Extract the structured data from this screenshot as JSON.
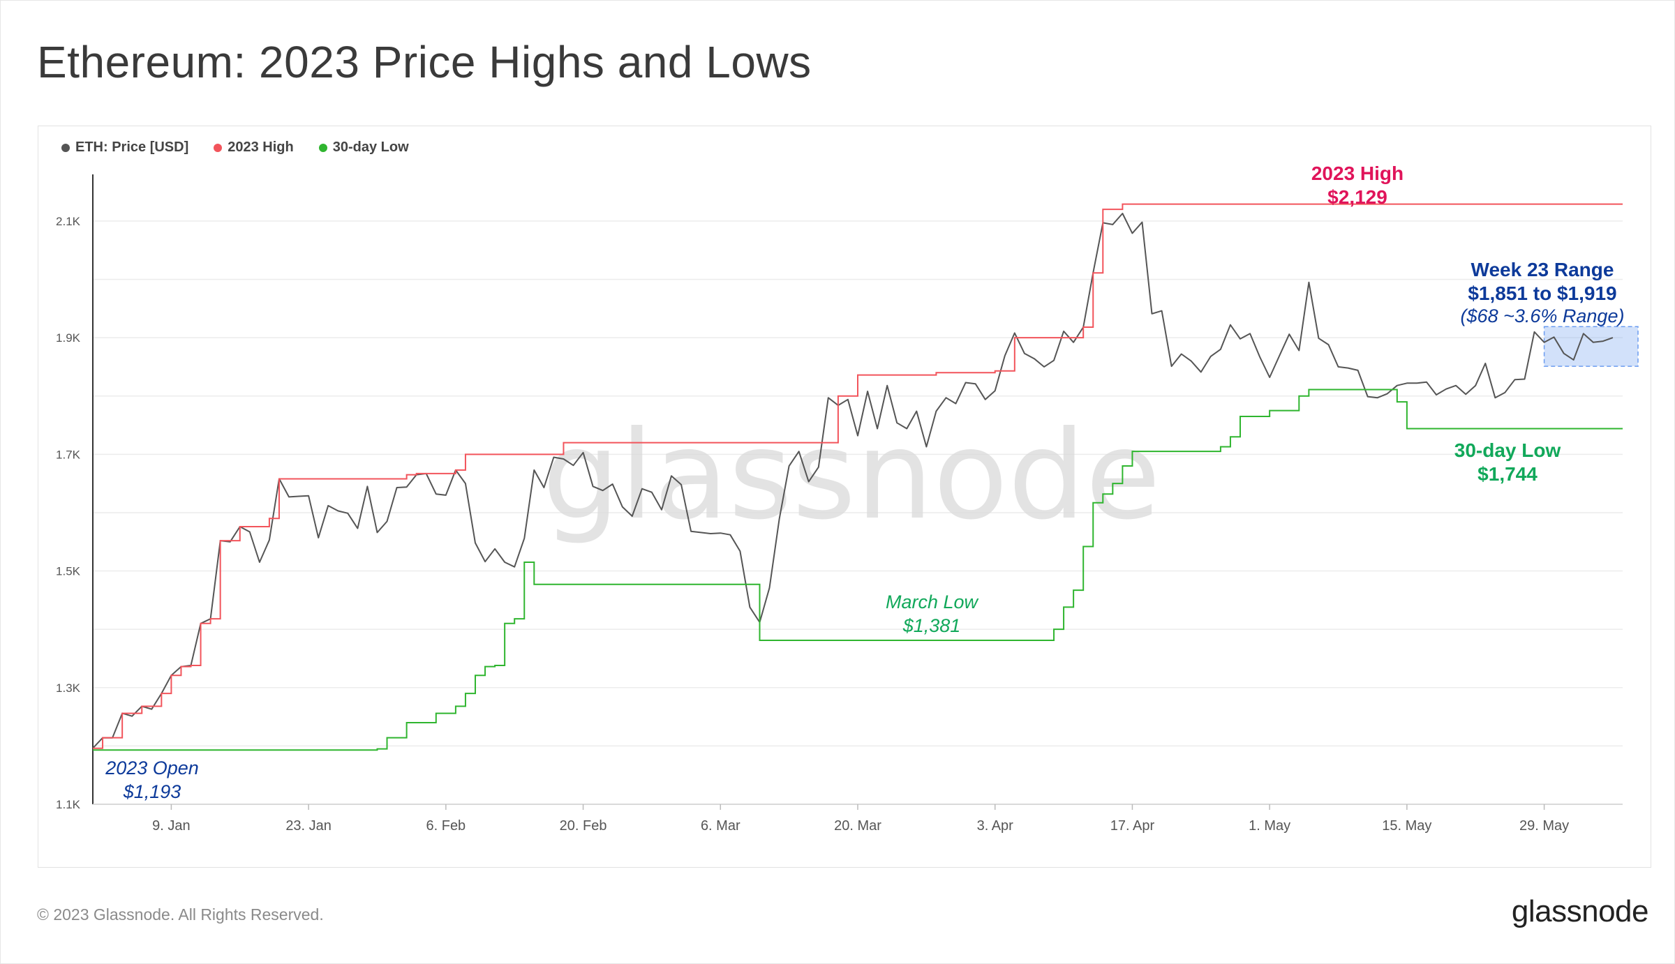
{
  "title": "Ethereum: 2023 Price Highs and Lows",
  "footer": {
    "copyright": "© 2023 Glassnode. All Rights Reserved.",
    "logo": "glassnode"
  },
  "watermark": "glassnode",
  "legend": [
    {
      "label": "ETH: Price [USD]",
      "color": "#555555"
    },
    {
      "label": "2023 High",
      "color": "#f2545b"
    },
    {
      "label": "30-day Low",
      "color": "#2fb52f"
    }
  ],
  "chart_data": {
    "type": "line",
    "x_axis": {
      "type": "date",
      "range": [
        "2023-01-01",
        "2023-06-06"
      ],
      "ticks": [
        {
          "date": "2023-01-09",
          "label": "9. Jan"
        },
        {
          "date": "2023-01-23",
          "label": "23. Jan"
        },
        {
          "date": "2023-02-06",
          "label": "6. Feb"
        },
        {
          "date": "2023-02-20",
          "label": "20. Feb"
        },
        {
          "date": "2023-03-06",
          "label": "6. Mar"
        },
        {
          "date": "2023-03-20",
          "label": "20. Mar"
        },
        {
          "date": "2023-04-03",
          "label": "3. Apr"
        },
        {
          "date": "2023-04-17",
          "label": "17. Apr"
        },
        {
          "date": "2023-05-01",
          "label": "1. May"
        },
        {
          "date": "2023-05-15",
          "label": "15. May"
        },
        {
          "date": "2023-05-29",
          "label": "29. May"
        }
      ]
    },
    "y_axis": {
      "range": [
        1100,
        2180
      ],
      "ticks": [
        {
          "value": 1100,
          "label": "1.1K"
        },
        {
          "value": 1300,
          "label": "1.3K"
        },
        {
          "value": 1500,
          "label": "1.5K"
        },
        {
          "value": 1700,
          "label": "1.7K"
        },
        {
          "value": 1900,
          "label": "1.9K"
        },
        {
          "value": 2100,
          "label": "2.1K"
        }
      ],
      "gridlines": [
        1100,
        1200,
        1300,
        1400,
        1500,
        1600,
        1700,
        1800,
        1900,
        2000,
        2100
      ],
      "grid": true
    },
    "series": [
      {
        "name": "ETH: Price [USD]",
        "color": "#555555",
        "points": [
          [
            "2023-01-01",
            1196
          ],
          [
            "2023-01-02",
            1214
          ],
          [
            "2023-01-03",
            1214
          ],
          [
            "2023-01-04",
            1256
          ],
          [
            "2023-01-05",
            1251
          ],
          [
            "2023-01-06",
            1268
          ],
          [
            "2023-01-07",
            1263
          ],
          [
            "2023-01-08",
            1290
          ],
          [
            "2023-01-09",
            1321
          ],
          [
            "2023-01-10",
            1336
          ],
          [
            "2023-01-11",
            1338
          ],
          [
            "2023-01-12",
            1410
          ],
          [
            "2023-01-13",
            1418
          ],
          [
            "2023-01-14",
            1552
          ],
          [
            "2023-01-15",
            1550
          ],
          [
            "2023-01-16",
            1576
          ],
          [
            "2023-01-17",
            1567
          ],
          [
            "2023-01-18",
            1515
          ],
          [
            "2023-01-19",
            1553
          ],
          [
            "2023-01-20",
            1658
          ],
          [
            "2023-01-21",
            1627
          ],
          [
            "2023-01-22",
            1628
          ],
          [
            "2023-01-23",
            1629
          ],
          [
            "2023-01-24",
            1557
          ],
          [
            "2023-01-25",
            1612
          ],
          [
            "2023-01-26",
            1603
          ],
          [
            "2023-01-27",
            1599
          ],
          [
            "2023-01-28",
            1573
          ],
          [
            "2023-01-29",
            1645
          ],
          [
            "2023-01-30",
            1566
          ],
          [
            "2023-01-31",
            1585
          ],
          [
            "2023-02-01",
            1643
          ],
          [
            "2023-02-02",
            1644
          ],
          [
            "2023-02-03",
            1665
          ],
          [
            "2023-02-04",
            1667
          ],
          [
            "2023-02-05",
            1632
          ],
          [
            "2023-02-06",
            1630
          ],
          [
            "2023-02-07",
            1673
          ],
          [
            "2023-02-08",
            1650
          ],
          [
            "2023-02-09",
            1548
          ],
          [
            "2023-02-10",
            1516
          ],
          [
            "2023-02-11",
            1538
          ],
          [
            "2023-02-12",
            1515
          ],
          [
            "2023-02-13",
            1507
          ],
          [
            "2023-02-14",
            1556
          ],
          [
            "2023-02-15",
            1673
          ],
          [
            "2023-02-16",
            1643
          ],
          [
            "2023-02-17",
            1695
          ],
          [
            "2023-02-18",
            1692
          ],
          [
            "2023-02-19",
            1681
          ],
          [
            "2023-02-20",
            1703
          ],
          [
            "2023-02-21",
            1645
          ],
          [
            "2023-02-22",
            1638
          ],
          [
            "2023-02-23",
            1649
          ],
          [
            "2023-02-24",
            1610
          ],
          [
            "2023-02-25",
            1594
          ],
          [
            "2023-02-26",
            1641
          ],
          [
            "2023-02-27",
            1635
          ],
          [
            "2023-02-28",
            1605
          ],
          [
            "2023-03-01",
            1663
          ],
          [
            "2023-03-02",
            1648
          ],
          [
            "2023-03-03",
            1568
          ],
          [
            "2023-03-04",
            1566
          ],
          [
            "2023-03-05",
            1564
          ],
          [
            "2023-03-06",
            1565
          ],
          [
            "2023-03-07",
            1562
          ],
          [
            "2023-03-08",
            1534
          ],
          [
            "2023-03-09",
            1438
          ],
          [
            "2023-03-10",
            1412
          ],
          [
            "2023-03-11",
            1471
          ],
          [
            "2023-03-12",
            1589
          ],
          [
            "2023-03-13",
            1680
          ],
          [
            "2023-03-14",
            1705
          ],
          [
            "2023-03-15",
            1653
          ],
          [
            "2023-03-16",
            1678
          ],
          [
            "2023-03-17",
            1797
          ],
          [
            "2023-03-18",
            1784
          ],
          [
            "2023-03-19",
            1794
          ],
          [
            "2023-03-20",
            1732
          ],
          [
            "2023-03-21",
            1808
          ],
          [
            "2023-03-22",
            1744
          ],
          [
            "2023-03-23",
            1818
          ],
          [
            "2023-03-24",
            1754
          ],
          [
            "2023-03-25",
            1744
          ],
          [
            "2023-03-26",
            1774
          ],
          [
            "2023-03-27",
            1713
          ],
          [
            "2023-03-28",
            1774
          ],
          [
            "2023-03-29",
            1797
          ],
          [
            "2023-03-30",
            1787
          ],
          [
            "2023-03-31",
            1823
          ],
          [
            "2023-04-01",
            1821
          ],
          [
            "2023-04-02",
            1794
          ],
          [
            "2023-04-03",
            1809
          ],
          [
            "2023-04-04",
            1869
          ],
          [
            "2023-04-05",
            1908
          ],
          [
            "2023-04-06",
            1873
          ],
          [
            "2023-04-07",
            1864
          ],
          [
            "2023-04-08",
            1850
          ],
          [
            "2023-04-09",
            1861
          ],
          [
            "2023-04-10",
            1911
          ],
          [
            "2023-04-11",
            1892
          ],
          [
            "2023-04-12",
            1918
          ],
          [
            "2023-04-13",
            2011
          ],
          [
            "2023-04-14",
            2097
          ],
          [
            "2023-04-15",
            2094
          ],
          [
            "2023-04-16",
            2113
          ],
          [
            "2023-04-17",
            2079
          ],
          [
            "2023-04-18",
            2098
          ],
          [
            "2023-04-19",
            1941
          ],
          [
            "2023-04-20",
            1946
          ],
          [
            "2023-04-21",
            1851
          ],
          [
            "2023-04-22",
            1872
          ],
          [
            "2023-04-23",
            1860
          ],
          [
            "2023-04-24",
            1841
          ],
          [
            "2023-04-25",
            1868
          ],
          [
            "2023-04-26",
            1880
          ],
          [
            "2023-04-27",
            1922
          ],
          [
            "2023-04-28",
            1898
          ],
          [
            "2023-04-29",
            1907
          ],
          [
            "2023-04-30",
            1867
          ],
          [
            "2023-05-01",
            1832
          ],
          [
            "2023-05-02",
            1869
          ],
          [
            "2023-05-03",
            1906
          ],
          [
            "2023-05-04",
            1878
          ],
          [
            "2023-05-05",
            1995
          ],
          [
            "2023-05-06",
            1899
          ],
          [
            "2023-05-07",
            1888
          ],
          [
            "2023-05-08",
            1850
          ],
          [
            "2023-05-09",
            1848
          ],
          [
            "2023-05-10",
            1844
          ],
          [
            "2023-05-11",
            1799
          ],
          [
            "2023-05-12",
            1797
          ],
          [
            "2023-05-13",
            1804
          ],
          [
            "2023-05-14",
            1818
          ],
          [
            "2023-05-15",
            1822
          ],
          [
            "2023-05-16",
            1822
          ],
          [
            "2023-05-17",
            1824
          ],
          [
            "2023-05-18",
            1802
          ],
          [
            "2023-05-19",
            1812
          ],
          [
            "2023-05-20",
            1818
          ],
          [
            "2023-05-21",
            1803
          ],
          [
            "2023-05-22",
            1818
          ],
          [
            "2023-05-23",
            1856
          ],
          [
            "2023-05-24",
            1797
          ],
          [
            "2023-05-25",
            1806
          ],
          [
            "2023-05-26",
            1828
          ],
          [
            "2023-05-27",
            1829
          ],
          [
            "2023-05-28",
            1910
          ],
          [
            "2023-05-29",
            1892
          ],
          [
            "2023-05-30",
            1901
          ],
          [
            "2023-05-31",
            1873
          ],
          [
            "2023-06-01",
            1862
          ],
          [
            "2023-06-02",
            1907
          ],
          [
            "2023-06-03",
            1892
          ],
          [
            "2023-06-04",
            1894
          ],
          [
            "2023-06-05",
            1900
          ]
        ]
      },
      {
        "name": "2023 High",
        "color": "#f2545b",
        "step_points": [
          [
            "2023-01-01",
            1196
          ],
          [
            "2023-01-02",
            1214
          ],
          [
            "2023-01-04",
            1256
          ],
          [
            "2023-01-06",
            1268
          ],
          [
            "2023-01-08",
            1290
          ],
          [
            "2023-01-09",
            1321
          ],
          [
            "2023-01-10",
            1336
          ],
          [
            "2023-01-11",
            1338
          ],
          [
            "2023-01-12",
            1410
          ],
          [
            "2023-01-13",
            1418
          ],
          [
            "2023-01-14",
            1552
          ],
          [
            "2023-01-16",
            1576
          ],
          [
            "2023-01-19",
            1590
          ],
          [
            "2023-01-20",
            1658
          ],
          [
            "2023-02-02",
            1665
          ],
          [
            "2023-02-03",
            1667
          ],
          [
            "2023-02-07",
            1673
          ],
          [
            "2023-02-08",
            1700
          ],
          [
            "2023-02-18",
            1720
          ],
          [
            "2023-03-18",
            1800
          ],
          [
            "2023-03-20",
            1836
          ],
          [
            "2023-03-28",
            1840
          ],
          [
            "2023-04-03",
            1843
          ],
          [
            "2023-04-05",
            1900
          ],
          [
            "2023-04-12",
            1918
          ],
          [
            "2023-04-13",
            2011
          ],
          [
            "2023-04-14",
            2120
          ],
          [
            "2023-04-16",
            2129
          ],
          [
            "2023-06-06",
            2129
          ]
        ]
      },
      {
        "name": "30-day Low",
        "color": "#2fb52f",
        "step_points": [
          [
            "2023-01-01",
            1193
          ],
          [
            "2023-01-30",
            1195
          ],
          [
            "2023-01-31",
            1214
          ],
          [
            "2023-02-02",
            1240
          ],
          [
            "2023-02-05",
            1256
          ],
          [
            "2023-02-07",
            1268
          ],
          [
            "2023-02-08",
            1290
          ],
          [
            "2023-02-09",
            1321
          ],
          [
            "2023-02-10",
            1336
          ],
          [
            "2023-02-11",
            1338
          ],
          [
            "2023-02-12",
            1410
          ],
          [
            "2023-02-13",
            1418
          ],
          [
            "2023-02-14",
            1515
          ],
          [
            "2023-02-15",
            1477
          ],
          [
            "2023-03-10",
            1381
          ],
          [
            "2023-04-09",
            1400
          ],
          [
            "2023-04-10",
            1438
          ],
          [
            "2023-04-11",
            1467
          ],
          [
            "2023-04-12",
            1542
          ],
          [
            "2023-04-13",
            1617
          ],
          [
            "2023-04-14",
            1632
          ],
          [
            "2023-04-15",
            1650
          ],
          [
            "2023-04-16",
            1680
          ],
          [
            "2023-04-17",
            1705
          ],
          [
            "2023-04-26",
            1713
          ],
          [
            "2023-04-27",
            1730
          ],
          [
            "2023-04-28",
            1765
          ],
          [
            "2023-05-01",
            1775
          ],
          [
            "2023-05-04",
            1800
          ],
          [
            "2023-05-05",
            1811
          ],
          [
            "2023-05-13",
            1811
          ],
          [
            "2023-05-14",
            1790
          ],
          [
            "2023-05-15",
            1744
          ],
          [
            "2023-06-06",
            1744
          ]
        ]
      }
    ],
    "annotations": [
      {
        "id": "high",
        "lines": [
          "2023 High",
          "$2,129"
        ],
        "color": "#e0145a",
        "bold": true
      },
      {
        "id": "week23",
        "lines": [
          "Week 23 Range",
          "$1,851 to $1,919"
        ],
        "color": "#0d3a9a",
        "bold": true
      },
      {
        "id": "week23-sub",
        "lines": [
          "($68 ~3.6% Range)"
        ],
        "color": "#0d3a9a",
        "italic": true
      },
      {
        "id": "low30",
        "lines": [
          "30-day Low",
          "$1,744"
        ],
        "color": "#11a85a",
        "bold": true
      },
      {
        "id": "march",
        "lines": [
          "March Low",
          "$1,381"
        ],
        "color": "#11a85a",
        "italic": true
      },
      {
        "id": "open",
        "lines": [
          "2023 Open",
          "$1,193"
        ],
        "color": "#0d3a9a",
        "italic": true
      }
    ],
    "highlight_range": {
      "x": [
        "2023-05-29",
        "2023-06-06"
      ],
      "y": [
        1851,
        1919
      ],
      "color": "#6b9cf0"
    }
  }
}
